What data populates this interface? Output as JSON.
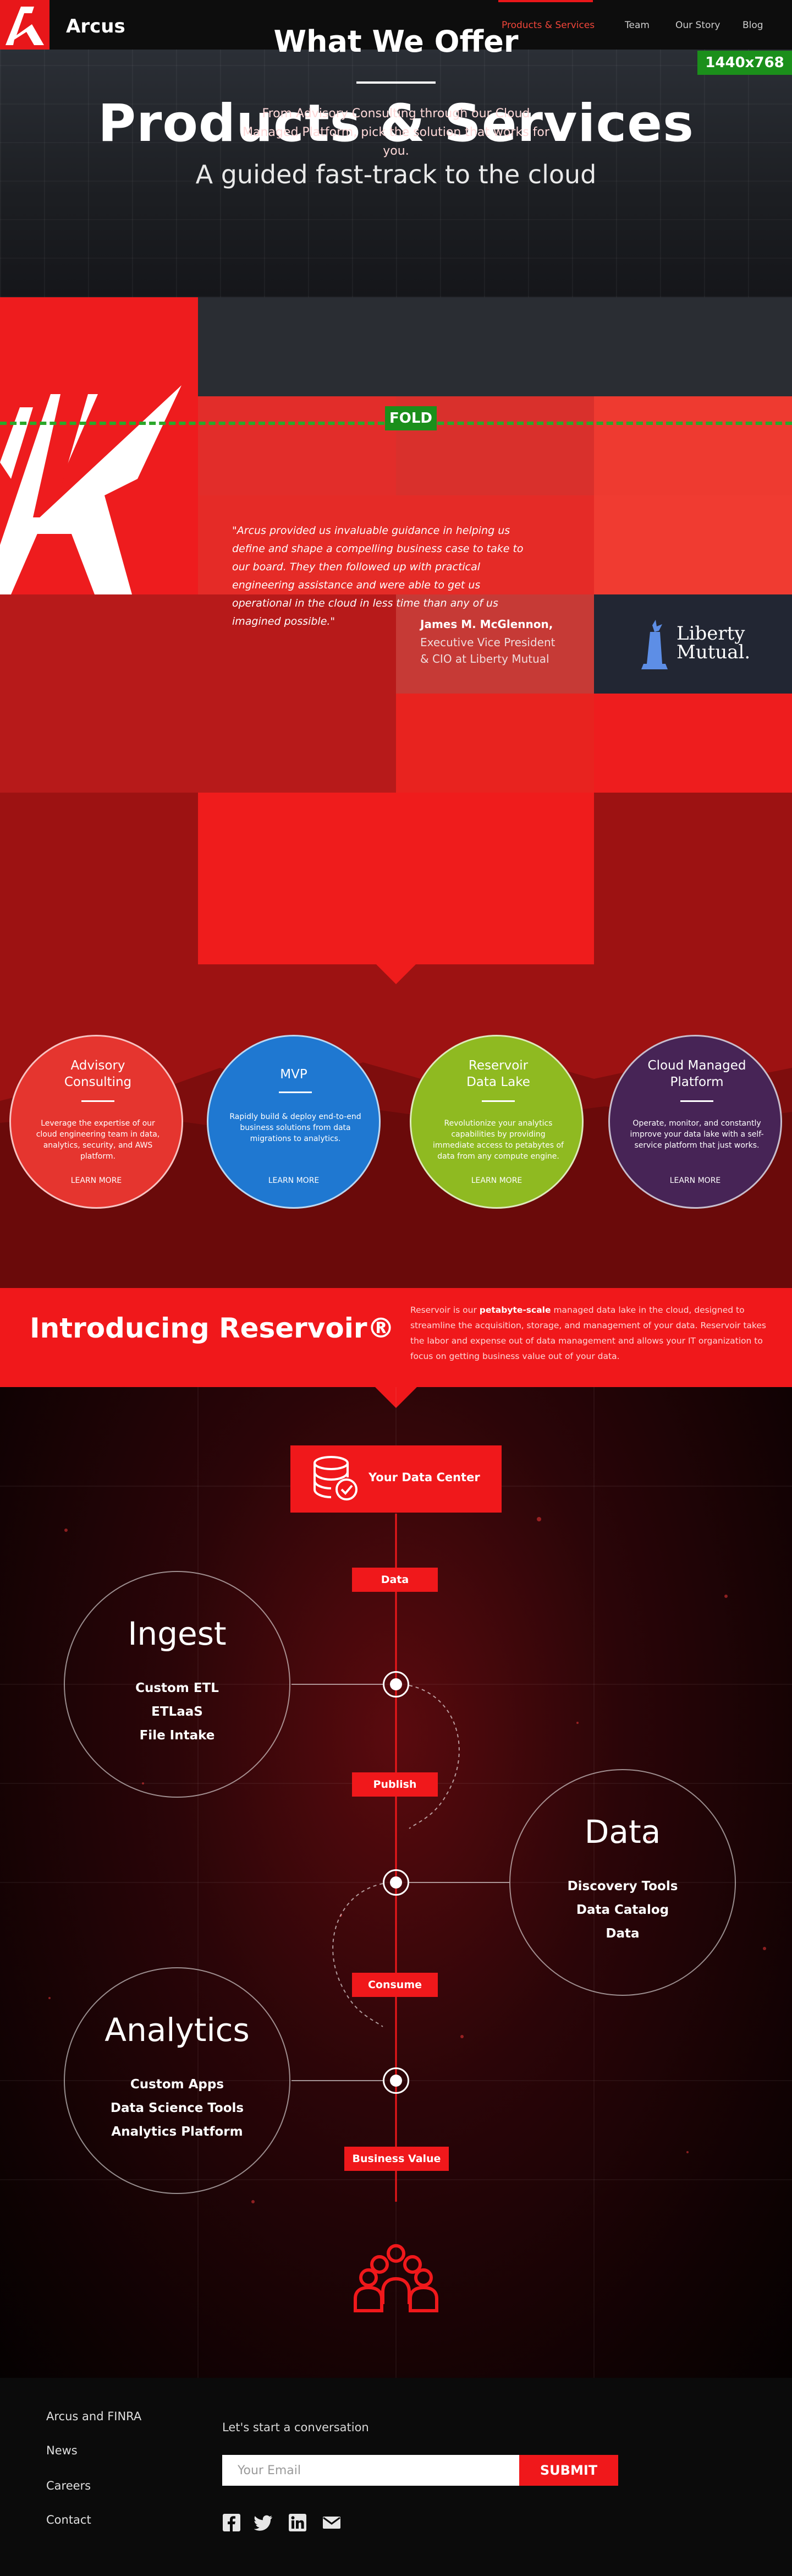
{
  "nav": {
    "brand": "Arcus",
    "links": [
      "Products & Services",
      "Team",
      "Our Story",
      "Blog"
    ],
    "active": "Products & Services",
    "resolution_badge": "1440x768"
  },
  "hero": {
    "title": "Products & Services",
    "subtitle": "A guided fast-track to the cloud"
  },
  "testimonial": {
    "quote": "\"Arcus provided us invaluable guidance in helping us define and shape a compelling business case to take to our board. They then followed up with practical engineering assistance and were able to get us operational in the cloud in less time than any of us imagined possible.\"",
    "person_name": "James M. McGlennon,",
    "person_title": "Executive Vice President & CIO at Liberty Mutual",
    "company_logo_text": "Liberty Mutual.",
    "fold_label": "FOLD"
  },
  "offer": {
    "title": "What We Offer",
    "text": "From Advisory Consulting through our Cloud Managed Platform, pick the solution that works for you.",
    "services": [
      {
        "title": "Advisory Consulting",
        "text": "Leverage the expertise of our cloud engineering team in data, analytics, security, and AWS platform.",
        "cta": "LEARN MORE",
        "color": "#e5352f"
      },
      {
        "title": "MVP",
        "text": "Rapidly build & deploy end-to-end business solutions from data migrations to analytics.",
        "cta": "LEARN MORE",
        "color": "#1f78d1"
      },
      {
        "title": "Reservoir Data Lake",
        "text": "Revolutionize your analytics capabilities by providing immediate access to petabytes of data from any compute engine.",
        "cta": "LEARN MORE",
        "color": "#8fba21"
      },
      {
        "title": "Cloud Managed Platform",
        "text": "Operate, monitor, and constantly improve your data lake with a self-service platform that just works.",
        "cta": "LEARN MORE",
        "color": "#472456"
      }
    ]
  },
  "reservoir": {
    "title": "Introducing Reservoir®",
    "text_before": "Reservoir is our ",
    "text_bold": "petabyte-scale",
    "text_after": " managed data lake in the cloud, designed to streamline the acquisition, storage, and management of your data. Reservoir takes the labor and expense out of data management and allows your IT organization to focus on getting business value out of your data."
  },
  "diagram": {
    "source": "Your Data Center",
    "tags": [
      "Data",
      "Publish",
      "Consume",
      "Business Value"
    ],
    "stages": [
      {
        "title": "Ingest",
        "items": [
          "Custom ETL",
          "ETLaaS",
          "File Intake"
        ]
      },
      {
        "title": "Data",
        "items": [
          "Discovery Tools",
          "Data Catalog",
          "Data"
        ]
      },
      {
        "title": "Analytics",
        "items": [
          "Custom Apps",
          "Data Science Tools",
          "Analytics Platform"
        ]
      }
    ]
  },
  "footer": {
    "links": [
      "Arcus and FINRA",
      "News",
      "Careers",
      "Contact"
    ],
    "cta": "Let's start a conversation",
    "email_placeholder": "Your Email",
    "submit": "SUBMIT"
  },
  "colors": {
    "accent": "#e8171a",
    "dark": "#0b0b0b",
    "fold": "#1b8f1b"
  }
}
